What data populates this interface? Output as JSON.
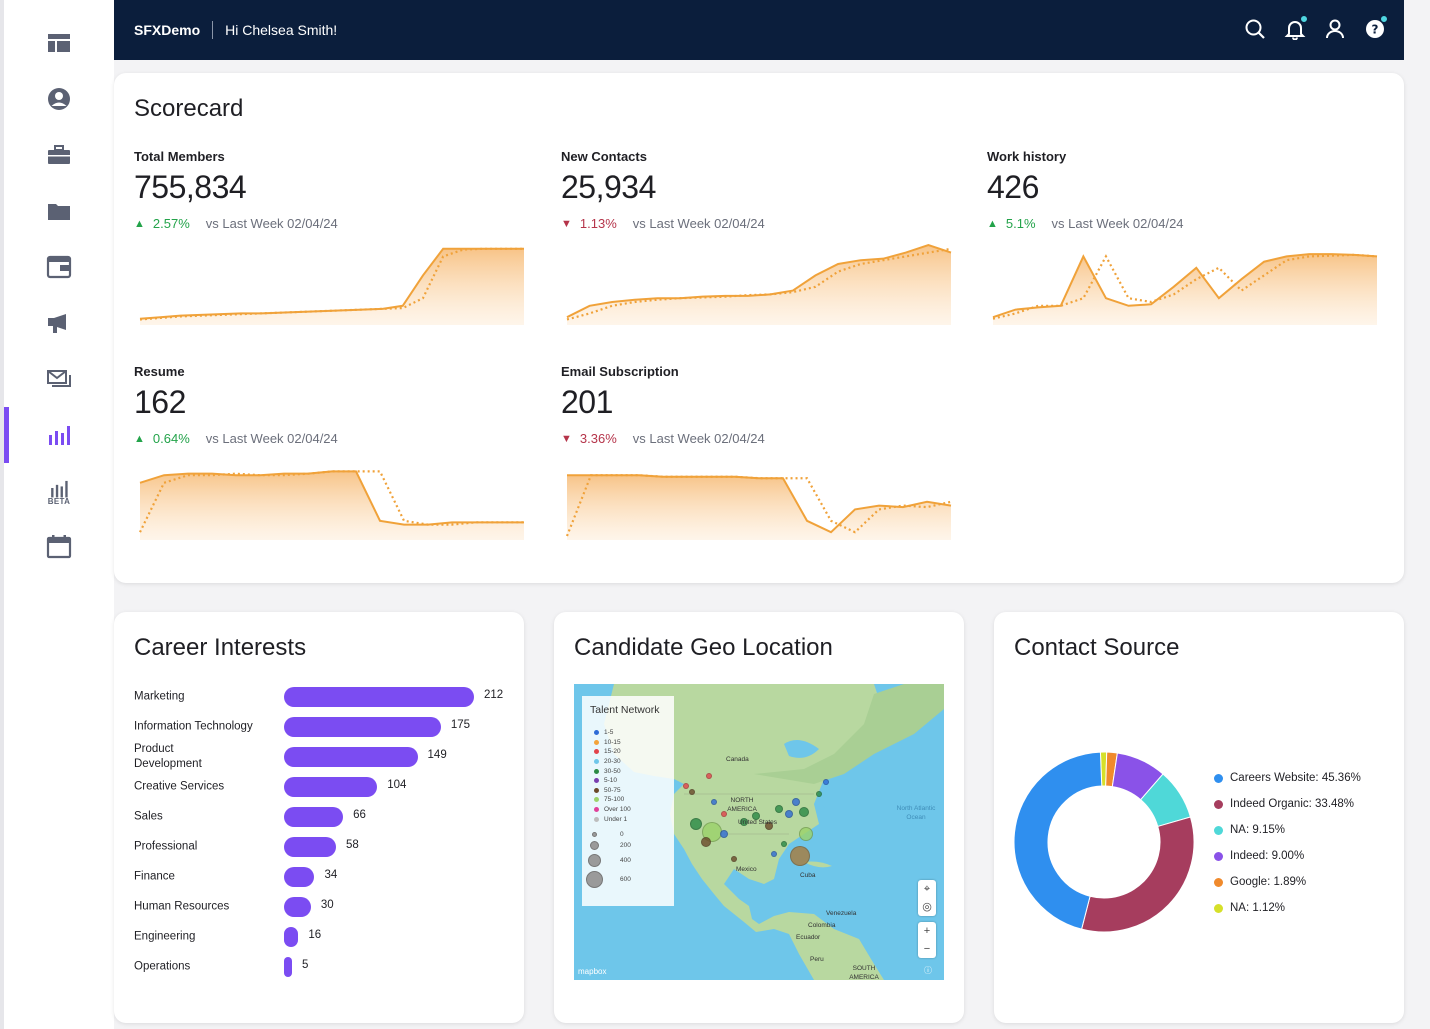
{
  "header": {
    "brand": "SFXDemo",
    "greeting": "Hi Chelsea Smith!"
  },
  "colors": {
    "accent": "#7b4cf2",
    "header_bg": "#0b1e3c",
    "up": "#23a34a",
    "down": "#b5344a",
    "spark": "#f0a23a"
  },
  "sidebar": {
    "beta_label": "BETA"
  },
  "scorecard": {
    "title": "Scorecard",
    "metrics": [
      {
        "label": "Total Members",
        "value": "755,834",
        "delta": "2.57%",
        "direction": "up",
        "compare": "vs Last Week 02/04/24",
        "series": [
          3,
          5,
          7,
          8,
          9,
          10,
          10,
          11,
          12,
          13,
          14,
          15,
          16,
          20,
          60,
          95,
          95,
          95,
          95,
          95
        ],
        "prev": [
          2,
          4,
          6,
          7,
          8,
          9,
          10,
          11,
          12,
          13,
          14,
          15,
          16,
          17,
          30,
          85,
          94,
          95,
          95,
          95
        ]
      },
      {
        "label": "New Contacts",
        "value": "25,934",
        "delta": "1.13%",
        "direction": "down",
        "compare": "vs Last Week 02/04/24",
        "series": [
          5,
          20,
          25,
          28,
          30,
          30,
          32,
          33,
          33,
          35,
          40,
          60,
          75,
          80,
          82,
          90,
          100,
          90
        ],
        "prev": [
          2,
          10,
          20,
          25,
          28,
          30,
          31,
          32,
          34,
          35,
          38,
          45,
          65,
          75,
          80,
          85,
          90,
          95
        ]
      },
      {
        "label": "Work history",
        "value": "426",
        "delta": "5.1%",
        "direction": "up",
        "compare": "vs Last Week 02/04/24",
        "series": [
          5,
          15,
          18,
          20,
          85,
          30,
          20,
          22,
          45,
          70,
          30,
          55,
          78,
          85,
          88,
          88,
          87,
          85
        ],
        "prev": [
          3,
          10,
          20,
          20,
          30,
          85,
          30,
          25,
          35,
          55,
          70,
          40,
          60,
          80,
          85,
          86,
          87,
          85
        ]
      }
    ]
  },
  "scorecard_row2": [
    {
      "label": "Resume",
      "value": "162",
      "delta": "0.64%",
      "direction": "up",
      "compare": "vs Last Week 02/04/24",
      "series": [
        70,
        80,
        82,
        82,
        80,
        80,
        82,
        82,
        85,
        85,
        20,
        15,
        15,
        18,
        18,
        18,
        18
      ],
      "prev": [
        5,
        70,
        80,
        80,
        82,
        80,
        80,
        82,
        85,
        85,
        85,
        20,
        15,
        15,
        18,
        18,
        18
      ]
    },
    {
      "label": "Email Subscription",
      "value": "201",
      "delta": "3.36%",
      "direction": "down",
      "compare": "vs Last Week 02/04/24",
      "series": [
        80,
        80,
        80,
        80,
        78,
        78,
        78,
        78,
        76,
        76,
        20,
        5,
        35,
        40,
        38,
        45,
        40
      ],
      "prev": [
        0,
        80,
        80,
        80,
        78,
        78,
        78,
        78,
        76,
        76,
        76,
        20,
        5,
        35,
        40,
        38,
        45
      ]
    }
  ],
  "career": {
    "title": "Career Interests",
    "items": [
      {
        "label": "Marketing",
        "value": 212
      },
      {
        "label": "Information Technology",
        "value": 175
      },
      {
        "label": "Product Development",
        "value": 149
      },
      {
        "label": "Creative Services",
        "value": 104
      },
      {
        "label": "Sales",
        "value": 66
      },
      {
        "label": "Professional",
        "value": 58
      },
      {
        "label": "Finance",
        "value": 34
      },
      {
        "label": "Human Resources",
        "value": 30
      },
      {
        "label": "Engineering",
        "value": 16
      },
      {
        "label": "Operations",
        "value": 5
      }
    ],
    "max": 212
  },
  "geo": {
    "title": "Candidate Geo Location",
    "legend_title": "Talent Network",
    "legend": [
      {
        "label": "1-5",
        "color": "#2e6bd6"
      },
      {
        "label": "10-15",
        "color": "#f3a33a"
      },
      {
        "label": "15-20",
        "color": "#e2434b"
      },
      {
        "label": "20-30",
        "color": "#6ec6ea"
      },
      {
        "label": "30-50",
        "color": "#2a8a45"
      },
      {
        "label": "5-10",
        "color": "#7a3fb0"
      },
      {
        "label": "50-75",
        "color": "#6b4a2a"
      },
      {
        "label": "75-100",
        "color": "#9bd36a"
      },
      {
        "label": "Over 100",
        "color": "#e0409a"
      },
      {
        "label": "Under 1",
        "color": "#bdbdbd"
      }
    ],
    "sizes": [
      "0",
      "200",
      "400",
      "600"
    ],
    "places": {
      "canada": "Canada",
      "na": "NORTH AMERICA",
      "us": "United States",
      "mexico": "Mexico",
      "cuba": "Cuba",
      "venezuela": "Venezuela",
      "colombia": "Colombia",
      "ecuador": "Ecuador",
      "peru": "Peru",
      "sa": "SOUTH AMERICA",
      "ocean": "North Atlantic Ocean"
    },
    "attribution": "mapbox"
  },
  "contact": {
    "title": "Contact Source",
    "chart_data": {
      "type": "pie",
      "title": "Contact Source",
      "slices": [
        {
          "name": "Careers Website",
          "value": 45.36,
          "label": "Careers Website: 45.36%",
          "color": "#2f8fef"
        },
        {
          "name": "Indeed Organic",
          "value": 33.48,
          "label": "Indeed Organic: 33.48%",
          "color": "#a63d5e"
        },
        {
          "name": "NA",
          "value": 9.15,
          "label": "NA: 9.15%",
          "color": "#4fd8d8"
        },
        {
          "name": "Indeed",
          "value": 9.0,
          "label": "Indeed: 9.00%",
          "color": "#8a52e8"
        },
        {
          "name": "Google",
          "value": 1.89,
          "label": "Google: 1.89%",
          "color": "#f08a2c"
        },
        {
          "name": "NA",
          "value": 1.12,
          "label": "NA: 1.12%",
          "color": "#d6e02a"
        }
      ]
    }
  }
}
